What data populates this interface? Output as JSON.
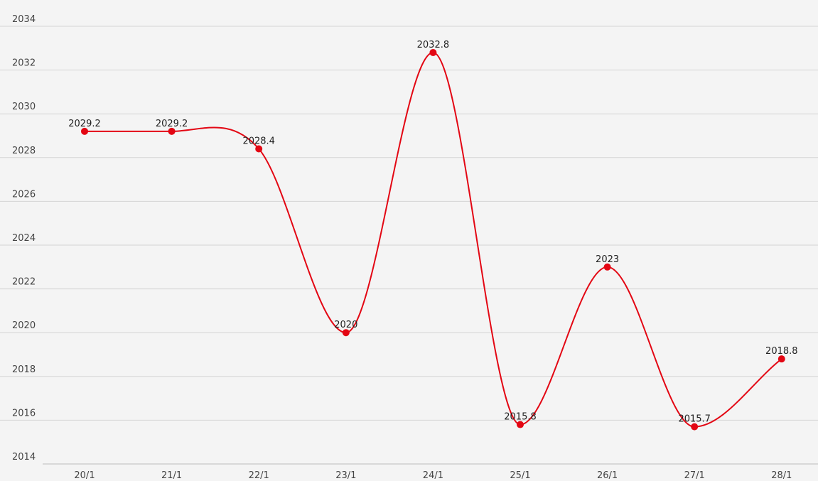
{
  "chart_data": {
    "type": "line",
    "title": "",
    "xlabel": "",
    "ylabel": "",
    "categories": [
      "20/1",
      "21/1",
      "22/1",
      "23/1",
      "24/1",
      "25/1",
      "26/1",
      "27/1",
      "28/1"
    ],
    "series": [
      {
        "values": [
          2029.2,
          2029.2,
          2028.4,
          2020,
          2032.8,
          2015.8,
          2023,
          2015.7,
          2018.8
        ],
        "labels": [
          "2029.2",
          "2029.2",
          "2028.4",
          "2020",
          "2032.8",
          "2015.8",
          "2023",
          "2015.7",
          "2018.8"
        ],
        "color": "#e30613"
      }
    ],
    "ylim": [
      2014,
      2034
    ],
    "y_ticks": [
      "2014",
      "2016",
      "2018",
      "2020",
      "2022",
      "2024",
      "2026",
      "2028",
      "2030",
      "2032",
      "2034"
    ],
    "grid": true,
    "legend": "none",
    "background": "#f4f4f4"
  }
}
